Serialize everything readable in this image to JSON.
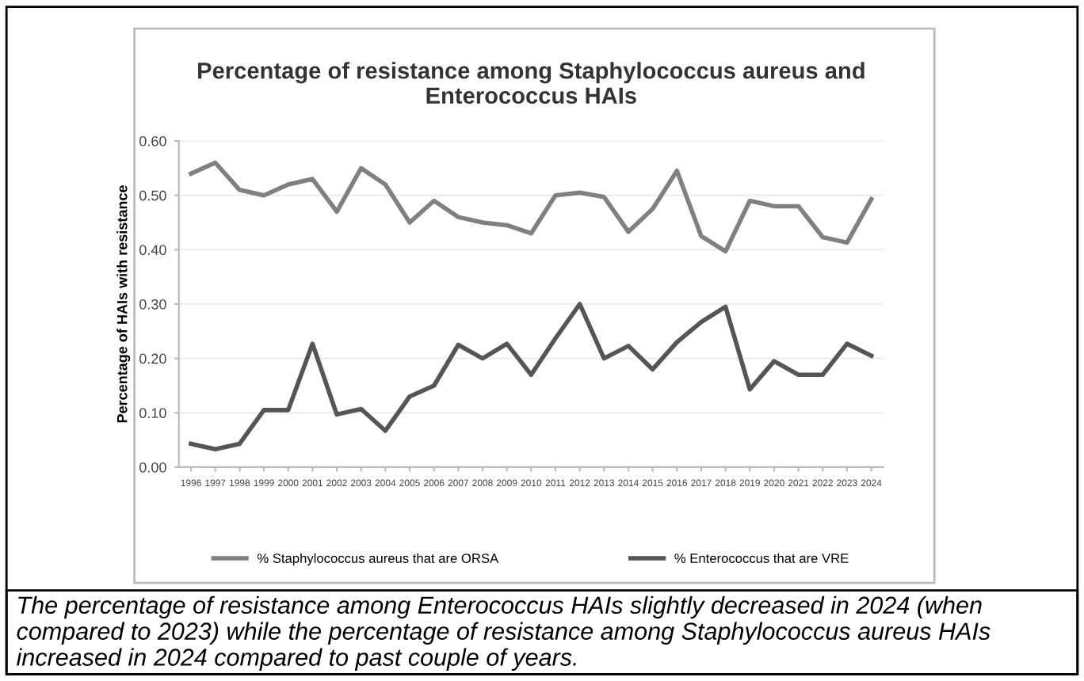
{
  "chart_data": {
    "type": "line",
    "title": "Percentage of resistance among Staphylococcus aureus and Enterococcus HAIs",
    "ylabel": "Percentage of HAIs with resistance",
    "categories": [
      "1996",
      "1997",
      "1998",
      "1999",
      "2000",
      "2001",
      "2002",
      "2003",
      "2004",
      "2005",
      "2006",
      "2007",
      "2008",
      "2009",
      "2010",
      "2011",
      "2012",
      "2013",
      "2014",
      "2015",
      "2016",
      "2017",
      "2018",
      "2019",
      "2020",
      "2021",
      "2022",
      "2023",
      "2024"
    ],
    "series": [
      {
        "name": "% Staphylococcus aureus that are ORSA",
        "color": "#808080",
        "values": [
          0.54,
          0.56,
          0.51,
          0.5,
          0.52,
          0.53,
          0.47,
          0.55,
          0.52,
          0.45,
          0.49,
          0.46,
          0.45,
          0.445,
          0.43,
          0.5,
          0.505,
          0.497,
          0.433,
          0.475,
          0.545,
          0.425,
          0.397,
          0.49,
          0.48,
          0.48,
          0.423,
          0.413,
          0.493
        ]
      },
      {
        "name": "% Enterococcus that are VRE",
        "color": "#555555",
        "values": [
          0.043,
          0.033,
          0.043,
          0.105,
          0.105,
          0.227,
          0.097,
          0.107,
          0.067,
          0.13,
          0.15,
          0.225,
          0.2,
          0.227,
          0.17,
          0.237,
          0.3,
          0.2,
          0.223,
          0.18,
          0.23,
          0.267,
          0.295,
          0.143,
          0.195,
          0.17,
          0.17,
          0.227,
          0.205
        ]
      }
    ],
    "ylim": [
      0,
      0.6
    ],
    "yticks": [
      {
        "value": 0,
        "label": "0.00"
      },
      {
        "value": 0.1,
        "label": "0.10"
      },
      {
        "value": 0.2,
        "label": "0.20"
      },
      {
        "value": 0.3,
        "label": "0.30"
      },
      {
        "value": 0.4,
        "label": "0.40"
      },
      {
        "value": 0.5,
        "label": "0.50"
      },
      {
        "value": 0.6,
        "label": "0.60"
      }
    ],
    "grid": "y",
    "legend": "bottom",
    "marker": "none",
    "line_style": "solid",
    "annotations": [
      "The percentage of resistance among Enterococcus HAIs slightly decreased in 2024 (when compared to 2023) while the percentage of resistance among Staphylococcus aureus HAIs increased in 2024 compared to past couple of years."
    ]
  }
}
